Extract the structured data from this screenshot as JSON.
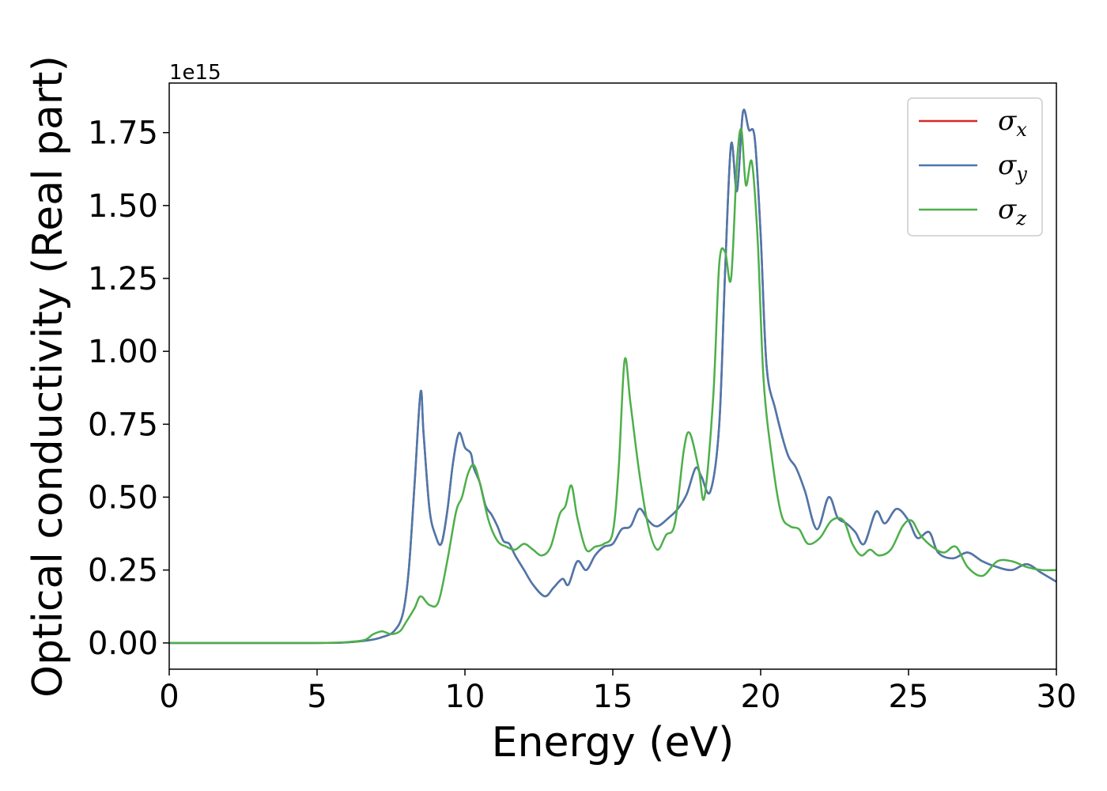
{
  "chart_data": {
    "type": "line",
    "xlabel": "Energy (eV)",
    "ylabel": "Optical conductivity (Real part)",
    "y_offset_label": "1e15",
    "xlim": [
      0,
      30
    ],
    "ylim": [
      -0.09,
      1.92
    ],
    "y_scale": 1000000000000000.0,
    "xticks": [
      0,
      5,
      10,
      15,
      20,
      25,
      30
    ],
    "xtick_labels": [
      "0",
      "5",
      "10",
      "15",
      "20",
      "25",
      "30"
    ],
    "yticks": [
      0.0,
      0.25,
      0.5,
      0.75,
      1.0,
      1.25,
      1.5,
      1.75
    ],
    "ytick_labels": [
      "0.00",
      "0.25",
      "0.50",
      "0.75",
      "1.00",
      "1.25",
      "1.50",
      "1.75"
    ],
    "grid": false,
    "legend_position": "top-right",
    "series": [
      {
        "name": "σ",
        "subscript": "x",
        "color": "#d62728",
        "x": [
          0,
          5,
          6,
          6.8,
          7.2,
          7.6,
          7.9,
          8.1,
          8.3,
          8.5,
          8.6,
          8.8,
          9.0,
          9.2,
          9.4,
          9.6,
          9.8,
          10.0,
          10.2,
          10.3,
          10.5,
          10.7,
          10.9,
          11.1,
          11.3,
          11.5,
          11.7,
          12.0,
          12.3,
          12.7,
          13.0,
          13.3,
          13.5,
          13.8,
          14.1,
          14.4,
          14.7,
          15.0,
          15.3,
          15.6,
          15.9,
          16.2,
          16.5,
          16.9,
          17.2,
          17.5,
          17.8,
          18.0,
          18.3,
          18.6,
          18.8,
          19.0,
          19.2,
          19.4,
          19.6,
          19.8,
          20.0,
          20.2,
          20.5,
          20.9,
          21.2,
          21.5,
          21.9,
          22.3,
          22.6,
          22.9,
          23.2,
          23.5,
          23.9,
          24.2,
          24.6,
          25.0,
          25.3,
          25.7,
          26.0,
          26.5,
          27.0,
          27.5,
          28.0,
          28.5,
          29.0,
          29.5,
          30.0
        ],
        "y": [
          0,
          0,
          0.002,
          0.01,
          0.02,
          0.04,
          0.1,
          0.25,
          0.55,
          0.86,
          0.72,
          0.46,
          0.37,
          0.34,
          0.45,
          0.62,
          0.72,
          0.67,
          0.65,
          0.6,
          0.55,
          0.47,
          0.44,
          0.4,
          0.35,
          0.34,
          0.3,
          0.25,
          0.2,
          0.16,
          0.19,
          0.22,
          0.2,
          0.28,
          0.25,
          0.3,
          0.33,
          0.34,
          0.39,
          0.4,
          0.46,
          0.42,
          0.4,
          0.43,
          0.46,
          0.51,
          0.6,
          0.57,
          0.52,
          0.75,
          1.28,
          1.71,
          1.55,
          1.82,
          1.76,
          1.73,
          1.4,
          0.95,
          0.8,
          0.65,
          0.6,
          0.52,
          0.39,
          0.5,
          0.43,
          0.41,
          0.38,
          0.34,
          0.45,
          0.41,
          0.46,
          0.42,
          0.36,
          0.38,
          0.31,
          0.29,
          0.31,
          0.28,
          0.26,
          0.25,
          0.27,
          0.24,
          0.21
        ]
      },
      {
        "name": "σ",
        "subscript": "y",
        "color": "#4a78ad",
        "x": [
          0,
          5,
          6,
          6.8,
          7.2,
          7.6,
          7.9,
          8.1,
          8.3,
          8.5,
          8.6,
          8.8,
          9.0,
          9.2,
          9.4,
          9.6,
          9.8,
          10.0,
          10.2,
          10.3,
          10.5,
          10.7,
          10.9,
          11.1,
          11.3,
          11.5,
          11.7,
          12.0,
          12.3,
          12.7,
          13.0,
          13.3,
          13.5,
          13.8,
          14.1,
          14.4,
          14.7,
          15.0,
          15.3,
          15.6,
          15.9,
          16.2,
          16.5,
          16.9,
          17.2,
          17.5,
          17.8,
          18.0,
          18.3,
          18.6,
          18.8,
          19.0,
          19.2,
          19.4,
          19.6,
          19.8,
          20.0,
          20.2,
          20.5,
          20.9,
          21.2,
          21.5,
          21.9,
          22.3,
          22.6,
          22.9,
          23.2,
          23.5,
          23.9,
          24.2,
          24.6,
          25.0,
          25.3,
          25.7,
          26.0,
          26.5,
          27.0,
          27.5,
          28.0,
          28.5,
          29.0,
          29.5,
          30.0
        ],
        "y": [
          0,
          0,
          0.002,
          0.01,
          0.02,
          0.04,
          0.1,
          0.25,
          0.55,
          0.86,
          0.72,
          0.46,
          0.37,
          0.34,
          0.45,
          0.62,
          0.72,
          0.67,
          0.65,
          0.6,
          0.55,
          0.47,
          0.44,
          0.4,
          0.35,
          0.34,
          0.3,
          0.25,
          0.2,
          0.16,
          0.19,
          0.22,
          0.2,
          0.28,
          0.25,
          0.3,
          0.33,
          0.34,
          0.39,
          0.4,
          0.46,
          0.42,
          0.4,
          0.43,
          0.46,
          0.51,
          0.6,
          0.57,
          0.52,
          0.75,
          1.28,
          1.71,
          1.55,
          1.82,
          1.76,
          1.73,
          1.4,
          0.95,
          0.8,
          0.65,
          0.6,
          0.52,
          0.39,
          0.5,
          0.43,
          0.41,
          0.38,
          0.34,
          0.45,
          0.41,
          0.46,
          0.42,
          0.36,
          0.38,
          0.31,
          0.29,
          0.31,
          0.28,
          0.26,
          0.25,
          0.27,
          0.24,
          0.21
        ]
      },
      {
        "name": "σ",
        "subscript": "z",
        "color": "#4daf4a",
        "x": [
          0,
          5,
          6,
          6.6,
          6.9,
          7.2,
          7.5,
          7.8,
          8.0,
          8.3,
          8.5,
          8.8,
          9.1,
          9.4,
          9.7,
          9.9,
          10.1,
          10.3,
          10.5,
          10.8,
          11.1,
          11.4,
          11.7,
          12.0,
          12.3,
          12.6,
          12.9,
          13.2,
          13.4,
          13.6,
          13.8,
          14.1,
          14.4,
          14.7,
          15.0,
          15.2,
          15.4,
          15.6,
          15.9,
          16.2,
          16.5,
          16.8,
          17.1,
          17.4,
          17.6,
          17.9,
          18.1,
          18.4,
          18.6,
          18.8,
          19.0,
          19.2,
          19.35,
          19.5,
          19.7,
          19.9,
          20.1,
          20.4,
          20.7,
          21.0,
          21.3,
          21.6,
          22.0,
          22.4,
          22.8,
          23.1,
          23.4,
          23.7,
          24.0,
          24.4,
          24.8,
          25.1,
          25.4,
          25.8,
          26.2,
          26.6,
          27.0,
          27.5,
          28.0,
          28.5,
          29.0,
          29.5,
          30.0
        ],
        "y": [
          0,
          0,
          0.003,
          0.01,
          0.03,
          0.04,
          0.03,
          0.04,
          0.07,
          0.12,
          0.16,
          0.13,
          0.14,
          0.28,
          0.45,
          0.5,
          0.58,
          0.61,
          0.55,
          0.42,
          0.35,
          0.33,
          0.32,
          0.34,
          0.32,
          0.3,
          0.33,
          0.44,
          0.47,
          0.54,
          0.43,
          0.32,
          0.33,
          0.34,
          0.38,
          0.6,
          0.97,
          0.82,
          0.58,
          0.4,
          0.32,
          0.37,
          0.41,
          0.66,
          0.72,
          0.6,
          0.5,
          0.85,
          1.3,
          1.34,
          1.25,
          1.65,
          1.76,
          1.57,
          1.65,
          1.38,
          0.9,
          0.62,
          0.44,
          0.4,
          0.39,
          0.34,
          0.36,
          0.42,
          0.42,
          0.34,
          0.3,
          0.32,
          0.3,
          0.32,
          0.4,
          0.42,
          0.37,
          0.33,
          0.31,
          0.33,
          0.26,
          0.23,
          0.28,
          0.28,
          0.26,
          0.25,
          0.25
        ]
      }
    ]
  }
}
